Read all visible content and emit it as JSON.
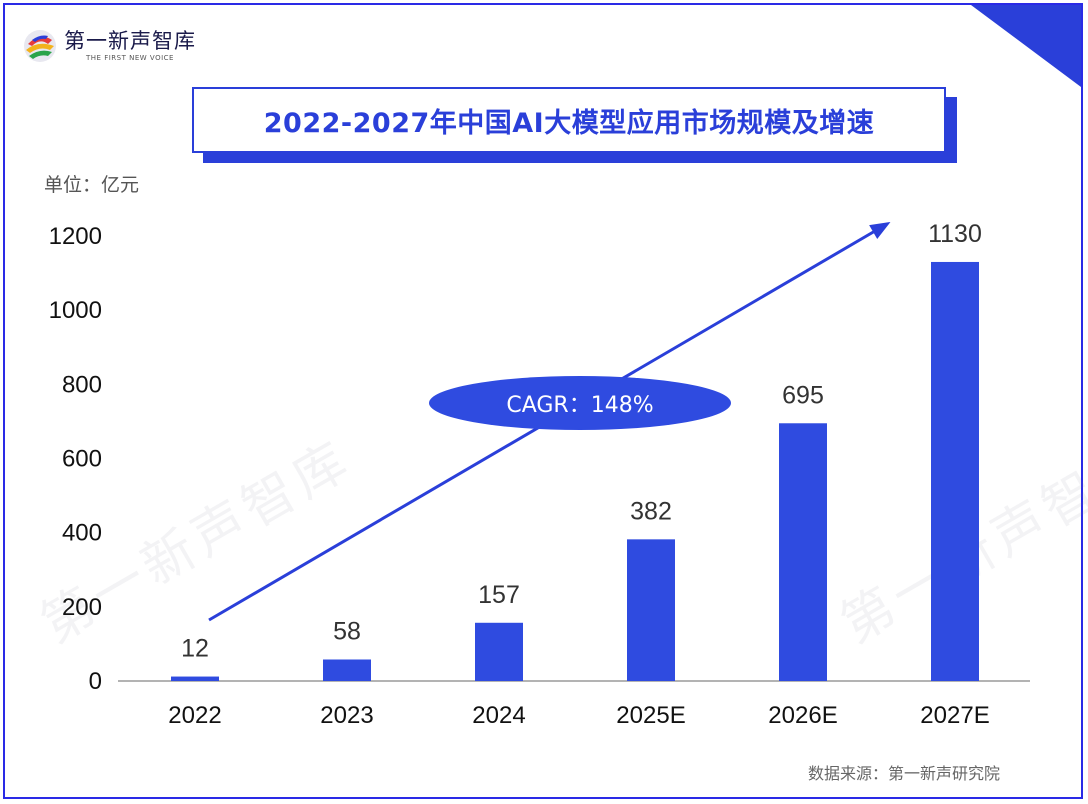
{
  "brand": {
    "name_cn": "第一新声智库",
    "name_en": "THE FIRST NEW VOICE"
  },
  "title": "2022-2027年中国AI大模型应用市场规模及增速",
  "unit_label": "单位：亿元",
  "source": "数据来源：第一新声研究院",
  "colors": {
    "bar": "#2f4be0",
    "accent": "#2a3fd9",
    "axis": "#9a9a9a"
  },
  "chart_data": {
    "type": "bar",
    "categories": [
      "2022",
      "2023",
      "2024",
      "2025E",
      "2026E",
      "2027E"
    ],
    "values": [
      12,
      58,
      157,
      382,
      695,
      1130
    ],
    "y_ticks": [
      0,
      200,
      400,
      600,
      800,
      1000,
      1200
    ],
    "ylim": [
      0,
      1200
    ],
    "grid": false,
    "annotation": "CAGR：148%"
  }
}
